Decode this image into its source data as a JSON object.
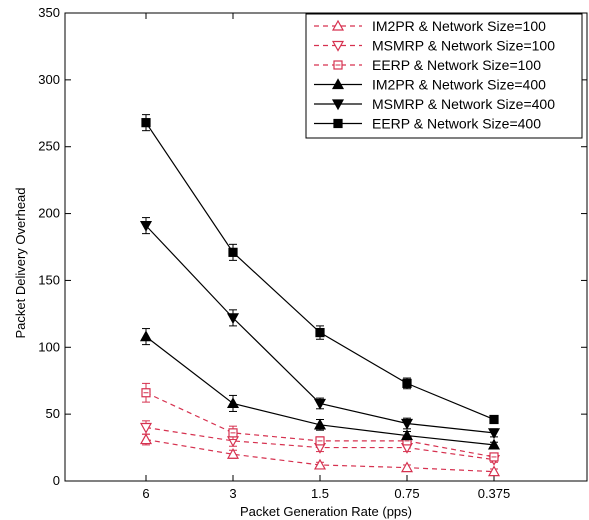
{
  "chart_data": {
    "type": "line",
    "title": "",
    "xlabel": "Packet Generation Rate (pps)",
    "ylabel": "Packet Delivery Overhead",
    "categories": [
      "6",
      "3",
      "1.5",
      "0.75",
      "0.375"
    ],
    "ylim": [
      0,
      350
    ],
    "yticks": [
      "0",
      "50",
      "100",
      "150",
      "200",
      "250",
      "300",
      "350"
    ],
    "legend_position": "top-right",
    "grid": false,
    "series": [
      {
        "name": "IM2PR & Network Size=100",
        "values": [
          31,
          20,
          12,
          10,
          7
        ],
        "errors": [
          4,
          3,
          2,
          2,
          2
        ],
        "color": "#d6314f",
        "line": "dashed",
        "marker": "triangle-up",
        "filled": false
      },
      {
        "name": "MSMRP & Network Size=100",
        "values": [
          40,
          30,
          25,
          25,
          16
        ],
        "errors": [
          5,
          4,
          3,
          3,
          2
        ],
        "color": "#d6314f",
        "line": "dashed",
        "marker": "triangle-down",
        "filled": false
      },
      {
        "name": "EERP & Network Size=100",
        "values": [
          66,
          36,
          30,
          30,
          18
        ],
        "errors": [
          7,
          5,
          3,
          3,
          2
        ],
        "color": "#d6314f",
        "line": "dashed",
        "marker": "square",
        "filled": false
      },
      {
        "name": "IM2PR & Network Size=400",
        "values": [
          108,
          58,
          42,
          34,
          27
        ],
        "errors": [
          6,
          6,
          4,
          3,
          2
        ],
        "color": "#000000",
        "line": "solid",
        "marker": "triangle-up",
        "filled": true
      },
      {
        "name": "MSMRP & Network Size=400",
        "values": [
          191,
          122,
          58,
          43,
          36
        ],
        "errors": [
          6,
          6,
          4,
          4,
          3
        ],
        "color": "#000000",
        "line": "solid",
        "marker": "triangle-down",
        "filled": true
      },
      {
        "name": "EERP & Network Size=400",
        "values": [
          268,
          171,
          111,
          73,
          46
        ],
        "errors": [
          6,
          6,
          5,
          4,
          2
        ],
        "color": "#000000",
        "line": "solid",
        "marker": "square",
        "filled": true
      }
    ]
  }
}
